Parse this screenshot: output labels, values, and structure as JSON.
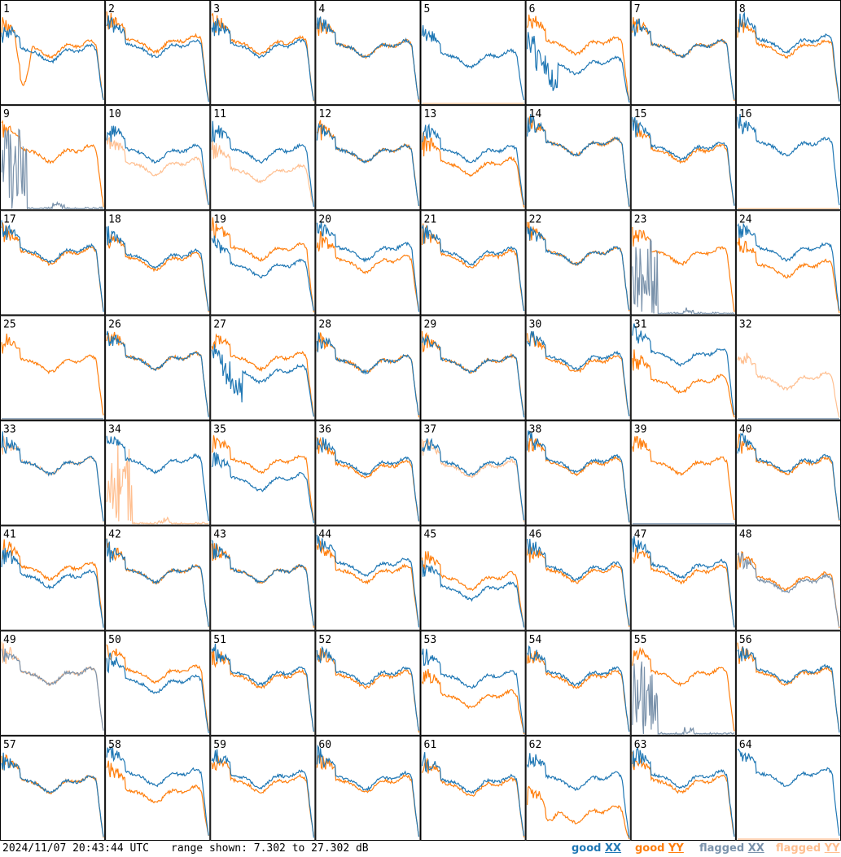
{
  "footer": {
    "timestamp": "2024/11/07 20:43:44 UTC",
    "range": "range shown: 7.302 to 27.302 dB",
    "legend": [
      {
        "word": "good",
        "pol": "XX",
        "color": "#1f77b4"
      },
      {
        "word": "good",
        "pol": "YY",
        "color": "#ff7f0e"
      },
      {
        "word": "flagged",
        "pol": "XX",
        "color": "#7a92ab"
      },
      {
        "word": "flagged",
        "pol": "YY",
        "color": "#ffbf90"
      }
    ]
  },
  "colors": {
    "good_xx": "#1f77b4",
    "good_yy": "#ff7f0e",
    "flagged_xx": "#7a92ab",
    "flagged_yy": "#ffbf90",
    "grid": "#000000",
    "background": "#ffffff"
  },
  "chart_data": {
    "type": "line",
    "grid": "8x8 small multiples, one panel per tile",
    "x_units": "channel (no axis labels shown)",
    "y_range_db": [
      7.302,
      27.302
    ],
    "series_names": [
      "XX",
      "YY"
    ],
    "tiles": [
      {
        "id": 1,
        "xx": "normal",
        "yy": "dip",
        "xx_level": 0.5,
        "yy_level": 0.55,
        "yy_dip": 0.8
      },
      {
        "id": 2,
        "xx": "normal",
        "yy": "normal",
        "xx_level": 0.55,
        "yy_level": 0.6
      },
      {
        "id": 3,
        "xx": "normal",
        "yy": "normal",
        "xx_level": 0.55,
        "yy_level": 0.58
      },
      {
        "id": 4,
        "xx": "normal",
        "yy": "normal",
        "xx_level": 0.55,
        "yy_level": 0.55
      },
      {
        "id": 5,
        "xx": "normal",
        "yy": "flat-flagged",
        "xx_level": 0.45,
        "yy_level": 0.0
      },
      {
        "id": 6,
        "xx": "dropout",
        "yy": "normal",
        "xx_level": 0.38,
        "yy_level": 0.58
      },
      {
        "id": 7,
        "xx": "normal",
        "yy": "normal",
        "xx_level": 0.55,
        "yy_level": 0.55
      },
      {
        "id": 8,
        "xx": "normal",
        "yy": "normal",
        "xx_level": 0.6,
        "yy_level": 0.55
      },
      {
        "id": 9,
        "xx": "flagged-spiky",
        "yy": "normal",
        "xx_level": 0.05,
        "yy_level": 0.55
      },
      {
        "id": 10,
        "xx": "normal",
        "yy": "flagged",
        "xx_level": 0.55,
        "yy_level": 0.42
      },
      {
        "id": 11,
        "xx": "normal",
        "yy": "flagged",
        "xx_level": 0.55,
        "yy_level": 0.35
      },
      {
        "id": 12,
        "xx": "normal",
        "yy": "normal",
        "xx_level": 0.55,
        "yy_level": 0.55
      },
      {
        "id": 13,
        "xx": "normal",
        "yy": "normal",
        "xx_level": 0.55,
        "yy_level": 0.42
      },
      {
        "id": 14,
        "xx": "normal",
        "yy": "normal",
        "xx_level": 0.62,
        "yy_level": 0.62
      },
      {
        "id": 15,
        "xx": "normal",
        "yy": "normal",
        "xx_level": 0.58,
        "yy_level": 0.55
      },
      {
        "id": 16,
        "xx": "normal",
        "yy": "flat-flagged",
        "xx_level": 0.62,
        "yy_level": 0.0
      },
      {
        "id": 17,
        "xx": "normal",
        "yy": "normal",
        "xx_level": 0.6,
        "yy_level": 0.58
      },
      {
        "id": 18,
        "xx": "normal",
        "yy": "normal",
        "xx_level": 0.55,
        "yy_level": 0.52
      },
      {
        "id": 19,
        "xx": "normal",
        "yy": "normal",
        "xx_level": 0.45,
        "yy_level": 0.62
      },
      {
        "id": 20,
        "xx": "normal",
        "yy": "normal",
        "xx_level": 0.62,
        "yy_level": 0.5
      },
      {
        "id": 21,
        "xx": "normal",
        "yy": "normal",
        "xx_level": 0.58,
        "yy_level": 0.55
      },
      {
        "id": 22,
        "xx": "normal",
        "yy": "normal",
        "xx_level": 0.58,
        "yy_level": 0.58
      },
      {
        "id": 23,
        "xx": "flagged-spiky",
        "yy": "normal",
        "xx_level": 0.15,
        "yy_level": 0.58
      },
      {
        "id": 24,
        "xx": "normal",
        "yy": "normal",
        "xx_level": 0.62,
        "yy_level": 0.45
      },
      {
        "id": 25,
        "xx": "flat-flagged",
        "yy": "normal",
        "xx_level": 0.0,
        "yy_level": 0.55
      },
      {
        "id": 26,
        "xx": "normal",
        "yy": "normal",
        "xx_level": 0.58,
        "yy_level": 0.58
      },
      {
        "id": 27,
        "xx": "dropout",
        "yy": "normal",
        "xx_level": 0.45,
        "yy_level": 0.58
      },
      {
        "id": 28,
        "xx": "normal",
        "yy": "normal",
        "xx_level": 0.55,
        "yy_level": 0.55
      },
      {
        "id": 29,
        "xx": "normal",
        "yy": "normal",
        "xx_level": 0.55,
        "yy_level": 0.55
      },
      {
        "id": 30,
        "xx": "normal",
        "yy": "normal",
        "xx_level": 0.58,
        "yy_level": 0.55
      },
      {
        "id": 31,
        "xx": "normal",
        "yy": "normal",
        "xx_level": 0.62,
        "yy_level": 0.35
      },
      {
        "id": 32,
        "xx": "flat-flagged",
        "yy": "flagged",
        "xx_level": 0.0,
        "yy_level": 0.38
      },
      {
        "id": 33,
        "xx": "normal",
        "yy": "flagged",
        "xx_level": 0.58,
        "yy_level": 0.58
      },
      {
        "id": 34,
        "xx": "normal",
        "yy": "flagged-spiky",
        "xx_level": 0.6,
        "yy_level": 0.05
      },
      {
        "id": 35,
        "xx": "normal",
        "yy": "normal",
        "xx_level": 0.42,
        "yy_level": 0.6
      },
      {
        "id": 36,
        "xx": "normal",
        "yy": "normal",
        "xx_level": 0.58,
        "yy_level": 0.55
      },
      {
        "id": 37,
        "xx": "normal",
        "yy": "flagged",
        "xx_level": 0.58,
        "yy_level": 0.55
      },
      {
        "id": 38,
        "xx": "normal",
        "yy": "normal",
        "xx_level": 0.6,
        "yy_level": 0.58
      },
      {
        "id": 39,
        "xx": "flat-flagged",
        "yy": "normal",
        "xx_level": 0.0,
        "yy_level": 0.58
      },
      {
        "id": 40,
        "xx": "normal",
        "yy": "normal",
        "xx_level": 0.6,
        "yy_level": 0.58
      },
      {
        "id": 41,
        "xx": "normal",
        "yy": "normal",
        "xx_level": 0.5,
        "yy_level": 0.58
      },
      {
        "id": 42,
        "xx": "normal",
        "yy": "normal",
        "xx_level": 0.55,
        "yy_level": 0.55
      },
      {
        "id": 43,
        "xx": "normal",
        "yy": "normal",
        "xx_level": 0.55,
        "yy_level": 0.55
      },
      {
        "id": 44,
        "xx": "normal",
        "yy": "normal",
        "xx_level": 0.62,
        "yy_level": 0.55
      },
      {
        "id": 45,
        "xx": "normal",
        "yy": "normal",
        "xx_level": 0.38,
        "yy_level": 0.48
      },
      {
        "id": 46,
        "xx": "normal",
        "yy": "normal",
        "xx_level": 0.58,
        "yy_level": 0.55
      },
      {
        "id": 47,
        "xx": "normal",
        "yy": "normal",
        "xx_level": 0.6,
        "yy_level": 0.55
      },
      {
        "id": 48,
        "xx": "flagged",
        "yy": "normal",
        "xx_level": 0.45,
        "yy_level": 0.48
      },
      {
        "id": 49,
        "xx": "flagged",
        "yy": "flagged",
        "xx_level": 0.58,
        "yy_level": 0.58
      },
      {
        "id": 50,
        "xx": "normal",
        "yy": "normal",
        "xx_level": 0.5,
        "yy_level": 0.6
      },
      {
        "id": 51,
        "xx": "normal",
        "yy": "normal",
        "xx_level": 0.58,
        "yy_level": 0.55
      },
      {
        "id": 52,
        "xx": "normal",
        "yy": "normal",
        "xx_level": 0.58,
        "yy_level": 0.55
      },
      {
        "id": 53,
        "xx": "normal",
        "yy": "normal",
        "xx_level": 0.55,
        "yy_level": 0.35
      },
      {
        "id": 54,
        "xx": "normal",
        "yy": "normal",
        "xx_level": 0.58,
        "yy_level": 0.55
      },
      {
        "id": 55,
        "xx": "flagged-spiky",
        "yy": "normal",
        "xx_level": 0.1,
        "yy_level": 0.58
      },
      {
        "id": 56,
        "xx": "normal",
        "yy": "normal",
        "xx_level": 0.6,
        "yy_level": 0.58
      },
      {
        "id": 57,
        "xx": "normal",
        "yy": "normal",
        "xx_level": 0.55,
        "yy_level": 0.55
      },
      {
        "id": 58,
        "xx": "normal",
        "yy": "normal",
        "xx_level": 0.62,
        "yy_level": 0.45
      },
      {
        "id": 59,
        "xx": "normal",
        "yy": "normal",
        "xx_level": 0.6,
        "yy_level": 0.55
      },
      {
        "id": 60,
        "xx": "normal",
        "yy": "normal",
        "xx_level": 0.58,
        "yy_level": 0.55
      },
      {
        "id": 61,
        "xx": "normal",
        "yy": "normal",
        "xx_level": 0.55,
        "yy_level": 0.52
      },
      {
        "id": 62,
        "xx": "normal",
        "yy": "dip",
        "xx_level": 0.58,
        "yy_level": 0.25,
        "yy_dip": 0.2
      },
      {
        "id": 63,
        "xx": "normal",
        "yy": "normal",
        "xx_level": 0.6,
        "yy_level": 0.55
      },
      {
        "id": 64,
        "xx": "normal",
        "yy": "flat-flagged",
        "xx_level": 0.62,
        "yy_level": 0.0
      }
    ]
  }
}
